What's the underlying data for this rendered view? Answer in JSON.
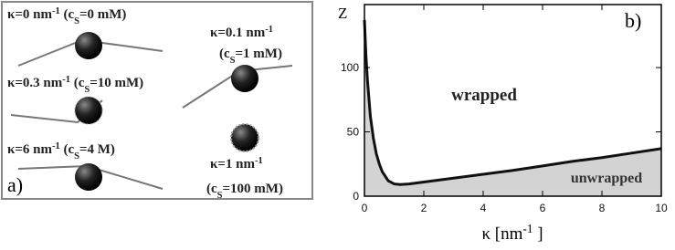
{
  "panel_a": {
    "label": "a)",
    "captions": [
      [
        {
          "text": "κ=0 nm"
        },
        {
          "text": "-1",
          "sup": true
        },
        {
          "text": " (c"
        },
        {
          "text": "S",
          "sub": true
        },
        {
          "text": "=0 mM)"
        }
      ],
      [
        {
          "text": "κ=0.1 nm"
        },
        {
          "text": "-1",
          "sup": true
        }
      ],
      [
        {
          "text": "(c"
        },
        {
          "text": "S",
          "sub": true
        },
        {
          "text": "=1 mM)"
        }
      ],
      [
        {
          "text": "κ=0.3 nm"
        },
        {
          "text": "-1",
          "sup": true
        },
        {
          "text": " (c"
        },
        {
          "text": "S",
          "sub": true
        },
        {
          "text": "=10 mM)"
        }
      ],
      [
        {
          "text": "κ=6 nm"
        },
        {
          "text": "-1",
          "sup": true
        },
        {
          "text": " (c"
        },
        {
          "text": "S",
          "sub": true
        },
        {
          "text": "=4 M)"
        }
      ],
      [
        {
          "text": "κ=1 nm"
        },
        {
          "text": "-1",
          "sup": true
        }
      ],
      [
        {
          "text": "(c"
        },
        {
          "text": "S",
          "sub": true
        },
        {
          "text": "=100 mM)"
        }
      ]
    ]
  },
  "chart_data": {
    "type": "line",
    "panel_label": "b)",
    "ylabel": "Z",
    "xlabel": [
      {
        "text": "κ [nm"
      },
      {
        "text": "-1",
        "sup": true
      },
      {
        "text": " ]"
      }
    ],
    "annotations": [
      "wrapped",
      "unwrapped"
    ],
    "x": [
      0,
      0.05,
      0.1,
      0.2,
      0.3,
      0.4,
      0.5,
      0.6,
      0.8,
      1,
      1.2,
      1.5,
      2,
      3,
      4,
      5,
      6,
      7,
      8,
      9,
      10
    ],
    "values": [
      137,
      110,
      90,
      62,
      45,
      33,
      25,
      19,
      12,
      9.5,
      9,
      9.5,
      11,
      14,
      17,
      20,
      23.5,
      27,
      30,
      33.5,
      37
    ],
    "color": "#111111",
    "fill": "#d3d3d3",
    "xlim": [
      0,
      10
    ],
    "xticks": [
      0,
      2,
      4,
      6,
      8,
      10
    ],
    "ylim": [
      0,
      149
    ],
    "yticks": [
      0,
      50,
      100
    ]
  }
}
